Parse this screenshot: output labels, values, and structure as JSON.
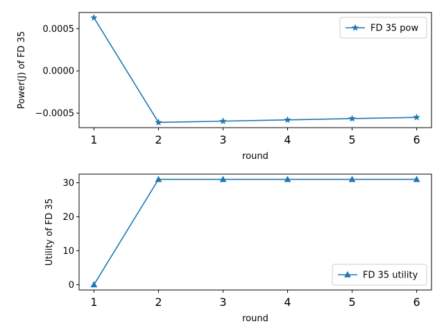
{
  "chart_data": [
    {
      "type": "line",
      "x": [
        1,
        2,
        3,
        4,
        5,
        6
      ],
      "series": [
        {
          "name": "FD 35 pow",
          "values": [
            0.00063,
            -0.00061,
            -0.000595,
            -0.00058,
            -0.000565,
            -0.00055
          ],
          "color": "#1f77b4",
          "marker": "star"
        }
      ],
      "xlabel": "round",
      "ylabel": "Power(J) of FD 35",
      "xlim": [
        0.77,
        6.23
      ],
      "ylim": [
        -0.000672,
        0.000692
      ],
      "xticks": [
        1,
        2,
        3,
        4,
        5,
        6
      ],
      "xtick_labels": [
        "1",
        "2",
        "3",
        "4",
        "5",
        "6"
      ],
      "yticks": [
        0.0005,
        0.0,
        -0.0005
      ],
      "ytick_labels": [
        "0.0005",
        "0.0000",
        "−0.0005"
      ],
      "legend": "top-right",
      "grid": false
    },
    {
      "type": "line",
      "x": [
        1,
        2,
        3,
        4,
        5,
        6
      ],
      "series": [
        {
          "name": "FD 35 utility",
          "values": [
            0,
            31,
            31,
            31,
            31,
            31
          ],
          "color": "#1f77b4",
          "marker": "triangle"
        }
      ],
      "xlabel": "round",
      "ylabel": "Utility of FD 35",
      "xlim": [
        0.77,
        6.23
      ],
      "ylim": [
        -1.55,
        32.55
      ],
      "xticks": [
        1,
        2,
        3,
        4,
        5,
        6
      ],
      "xtick_labels": [
        "1",
        "2",
        "3",
        "4",
        "5",
        "6"
      ],
      "yticks": [
        0,
        10,
        20,
        30
      ],
      "ytick_labels": [
        "0",
        "10",
        "20",
        "30"
      ],
      "legend": "bottom-right",
      "grid": false
    }
  ]
}
